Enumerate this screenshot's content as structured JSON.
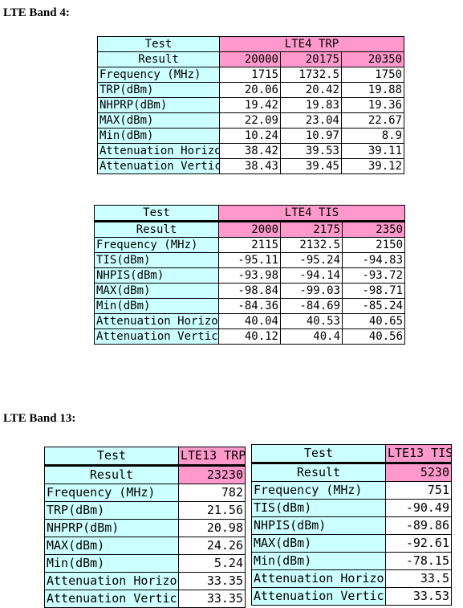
{
  "band4": {
    "heading": "LTE Band 4:",
    "trp": {
      "label_top": "Test",
      "label_bottom": "Result",
      "title": "LTE4 TRP",
      "channels": [
        "20000",
        "20175",
        "20350"
      ],
      "rows": [
        {
          "label": "Frequency (MHz)",
          "values": [
            "1715",
            "1732.5",
            "1750"
          ]
        },
        {
          "label": "TRP(dBm)",
          "values": [
            "20.06",
            "20.42",
            "19.88"
          ]
        },
        {
          "label": "NHPRP(dBm)",
          "values": [
            "19.42",
            "19.83",
            "19.36"
          ]
        },
        {
          "label": "MAX(dBm)",
          "values": [
            "22.09",
            "23.04",
            "22.67"
          ]
        },
        {
          "label": "Min(dBm)",
          "values": [
            "10.24",
            "10.97",
            "8.9"
          ]
        },
        {
          "label": "Attenuation Horizo",
          "values": [
            "38.42",
            "39.53",
            "39.11"
          ]
        },
        {
          "label": "Attenuation Vertic",
          "values": [
            "38.43",
            "39.45",
            "39.12"
          ]
        }
      ]
    },
    "tis": {
      "label_top": "Test",
      "label_bottom": "Result",
      "title": "LTE4 TIS",
      "channels": [
        "2000",
        "2175",
        "2350"
      ],
      "rows": [
        {
          "label": "Frequency (MHz)",
          "values": [
            "2115",
            "2132.5",
            "2150"
          ]
        },
        {
          "label": "TIS(dBm)",
          "values": [
            "-95.11",
            "-95.24",
            "-94.83"
          ]
        },
        {
          "label": "NHPIS(dBm)",
          "values": [
            "-93.98",
            "-94.14",
            "-93.72"
          ]
        },
        {
          "label": "MAX(dBm)",
          "values": [
            "-98.84",
            "-99.03",
            "-98.71"
          ]
        },
        {
          "label": "Min(dBm)",
          "values": [
            "-84.36",
            "-84.69",
            "-85.24"
          ]
        },
        {
          "label": "Attenuation Horizo",
          "values": [
            "40.04",
            "40.53",
            "40.65"
          ]
        },
        {
          "label": "Attenuation Vertic",
          "values": [
            "40.12",
            "40.4",
            "40.56"
          ]
        }
      ]
    }
  },
  "band13": {
    "heading": "LTE Band 13:",
    "trp": {
      "label_top": "Test",
      "label_bottom": "Result",
      "title": "LTE13 TRP",
      "channel": "23230",
      "rows": [
        {
          "label": "Frequency (MHz)",
          "value": "782"
        },
        {
          "label": "TRP(dBm)",
          "value": "21.56"
        },
        {
          "label": "NHPRP(dBm)",
          "value": "20.98"
        },
        {
          "label": "MAX(dBm)",
          "value": "24.26"
        },
        {
          "label": "Min(dBm)",
          "value": "5.24"
        },
        {
          "label": "Attenuation Horizo",
          "value": "33.35"
        },
        {
          "label": "Attenuation Vertic",
          "value": "33.35"
        }
      ]
    },
    "tis": {
      "label_top": "Test",
      "label_bottom": "Result",
      "title": "LTE13 TIS",
      "channel": "5230",
      "rows": [
        {
          "label": "Frequency (MHz)",
          "value": "751"
        },
        {
          "label": "TIS(dBm)",
          "value": "-90.49"
        },
        {
          "label": "NHPIS(dBm)",
          "value": "-89.86"
        },
        {
          "label": "MAX(dBm)",
          "value": "-92.61"
        },
        {
          "label": "Min(dBm)",
          "value": "-78.15"
        },
        {
          "label": "Attenuation Horizo",
          "value": "33.5"
        },
        {
          "label": "Attenuation Vertic",
          "value": "33.53"
        }
      ]
    }
  },
  "colors": {
    "label_cell": "#ccffff",
    "header_cell": "#ff99cc",
    "value_cell": "#ffffff"
  }
}
